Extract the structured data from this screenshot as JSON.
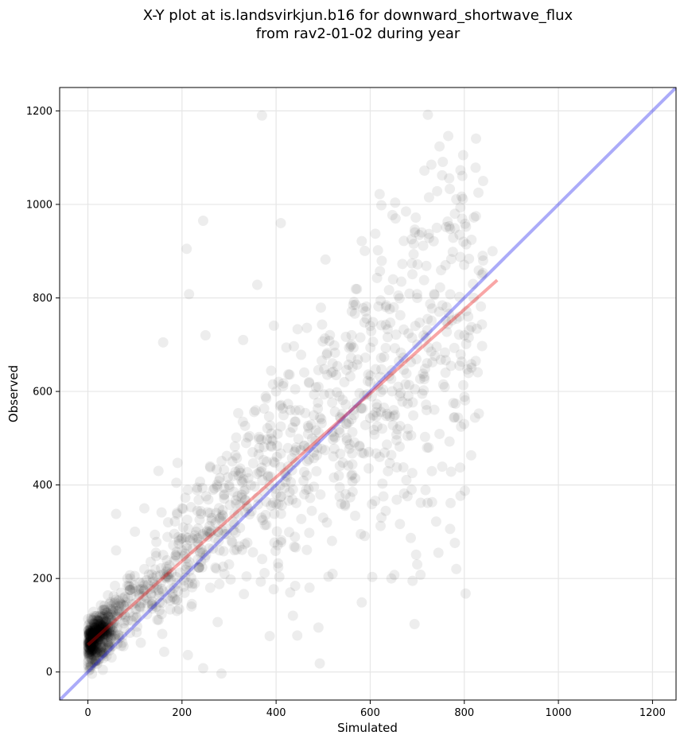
{
  "chart_data": {
    "type": "scatter",
    "title_line1": "X-Y plot at is.landsvirkjun.b16 for downward_shortwave_flux",
    "title_line2": "from rav2-01-02 during year",
    "xlabel": "Simulated",
    "ylabel": "Observed",
    "xlim": [
      -60,
      1250
    ],
    "ylim": [
      -60,
      1250
    ],
    "xticks": [
      0,
      200,
      400,
      600,
      800,
      1000,
      1200
    ],
    "yticks": [
      0,
      200,
      400,
      600,
      800,
      1000,
      1200
    ],
    "grid": true,
    "colors": {
      "points": "#000000",
      "identity_line": "#0000ee",
      "fit_line": "#ee0000"
    },
    "points_note_count": 1400,
    "identity_line": {
      "x": [
        -60,
        1250
      ],
      "y": [
        -60,
        1250
      ]
    },
    "fit_line": {
      "x": [
        0,
        870
      ],
      "y": [
        58,
        838
      ]
    },
    "series": [
      {
        "points": [
          [
            370,
            1190
          ],
          [
            730,
            1085
          ],
          [
            245,
            965
          ],
          [
            410,
            960
          ],
          [
            620,
            1022
          ],
          [
            725,
            1015
          ],
          [
            210,
            905
          ],
          [
            505,
            882
          ],
          [
            840,
            1050
          ],
          [
            830,
            1025
          ],
          [
            780,
            980
          ],
          [
            790,
            935
          ],
          [
            215,
            808
          ],
          [
            360,
            828
          ],
          [
            160,
            705
          ],
          [
            780,
            276
          ],
          [
            700,
            230
          ],
          [
            745,
            255
          ],
          [
            690,
            195
          ],
          [
            645,
            200
          ],
          [
            245,
            8
          ],
          [
            445,
            78
          ],
          [
            490,
            95
          ],
          [
            60,
            338
          ],
          [
            120,
            350
          ],
          [
            300,
            400
          ],
          [
            250,
            720
          ],
          [
            330,
            710
          ],
          [
            430,
            170
          ],
          [
            520,
            210
          ],
          [
            580,
            295
          ],
          [
            600,
            620
          ],
          [
            650,
            560
          ],
          [
            700,
            700
          ],
          [
            550,
            500
          ],
          [
            480,
            470
          ],
          [
            400,
            600
          ],
          [
            380,
            450
          ],
          [
            280,
            260
          ],
          [
            200,
            350
          ],
          [
            150,
            430
          ],
          [
            100,
            300
          ],
          [
            80,
            150
          ],
          [
            40,
            90
          ],
          [
            20,
            40
          ],
          [
            10,
            20
          ],
          [
            5,
            10
          ],
          [
            2,
            3
          ],
          [
            60,
            260
          ],
          [
            90,
            200
          ],
          [
            120,
            220
          ],
          [
            180,
            160
          ],
          [
            220,
            140
          ],
          [
            260,
            180
          ],
          [
            300,
            230
          ],
          [
            340,
            350
          ],
          [
            420,
            420
          ],
          [
            460,
            380
          ],
          [
            500,
            330
          ],
          [
            560,
            420
          ],
          [
            620,
            460
          ],
          [
            680,
            520
          ],
          [
            720,
            560
          ],
          [
            760,
            640
          ],
          [
            800,
            720
          ],
          [
            820,
            800
          ],
          [
            860,
            900
          ],
          [
            840,
            880
          ],
          [
            790,
            760
          ],
          [
            760,
            870
          ],
          [
            700,
            800
          ],
          [
            650,
            780
          ],
          [
            600,
            740
          ],
          [
            560,
            700
          ],
          [
            520,
            660
          ],
          [
            470,
            620
          ],
          [
            430,
            560
          ],
          [
            390,
            510
          ],
          [
            350,
            470
          ],
          [
            320,
            420
          ],
          [
            290,
            380
          ],
          [
            260,
            340
          ],
          [
            230,
            300
          ],
          [
            200,
            260
          ],
          [
            170,
            220
          ],
          [
            140,
            180
          ],
          [
            110,
            140
          ],
          [
            85,
            110
          ],
          [
            65,
            80
          ],
          [
            45,
            55
          ],
          [
            30,
            35
          ],
          [
            15,
            18
          ]
        ]
      }
    ]
  }
}
